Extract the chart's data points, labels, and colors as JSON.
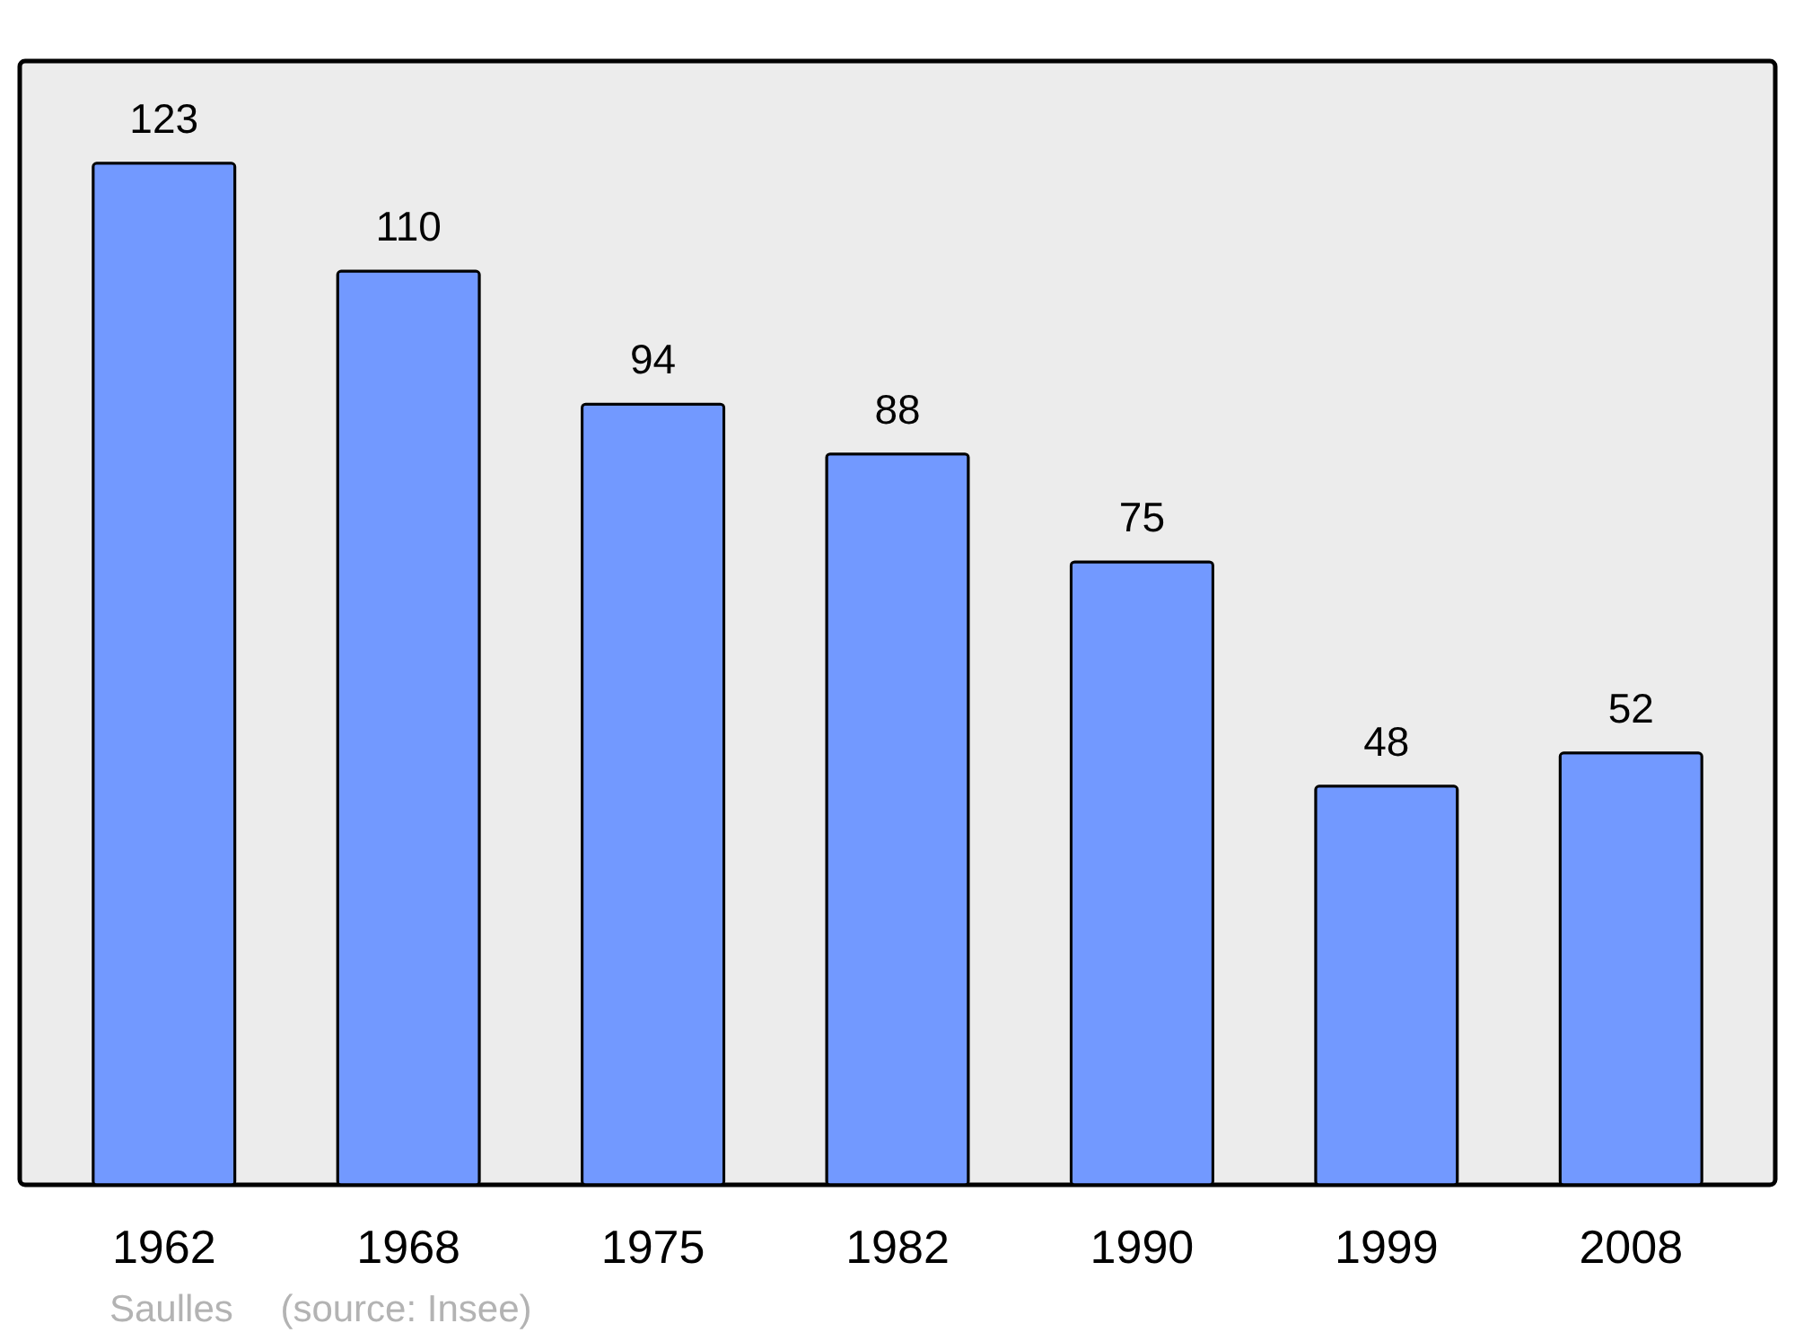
{
  "chart_data": {
    "type": "bar",
    "categories": [
      "1962",
      "1968",
      "1975",
      "1982",
      "1990",
      "1999",
      "2008"
    ],
    "values": [
      123,
      110,
      94,
      88,
      75,
      48,
      52
    ],
    "color": "#7299ff",
    "data_labels": true,
    "tick_labels": "x",
    "annotations": [
      "Saulles",
      "(source: Insee)"
    ]
  }
}
